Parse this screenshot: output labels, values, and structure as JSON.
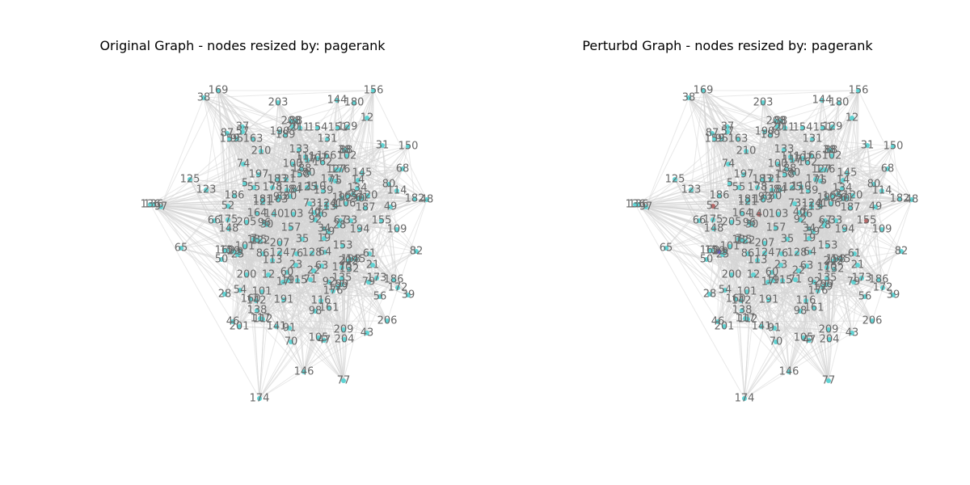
{
  "figure": {
    "panels": [
      {
        "title": "Original Graph - nodes resized by: pagerank",
        "node_color": "#5fd3d3",
        "edge_color": "#d6d6d6",
        "label_color": "#666666",
        "highlighted_nodes": []
      },
      {
        "title": "Perturbd Graph - nodes resized by: pagerank",
        "node_color": "#5fd3d3",
        "edge_color": "#d6d6d6",
        "label_color": "#666666",
        "highlighted_nodes": [
          {
            "label": "140",
            "color": "#b86a6a"
          },
          {
            "label": "155",
            "color": "#b86a6a"
          },
          {
            "label": "52",
            "color": "#b86a6a"
          },
          {
            "label": "94",
            "color": "#6a5acd"
          },
          {
            "label": "29",
            "color": "#6a5acd"
          }
        ]
      }
    ],
    "node_labels": [
      "169",
      "203",
      "38",
      "144",
      "180",
      "156",
      "208",
      "88",
      "12",
      "37",
      "57",
      "87",
      "159",
      "95",
      "163",
      "190",
      "189",
      "20",
      "211",
      "154",
      "151",
      "129",
      "131",
      "31",
      "150",
      "210",
      "133",
      "88",
      "38",
      "102",
      "117",
      "107",
      "166",
      "162",
      "74",
      "100",
      "111",
      "127",
      "176",
      "145",
      "68",
      "125",
      "197",
      "183",
      "121",
      "188",
      "158",
      "80",
      "171",
      "75",
      "14",
      "134",
      "120",
      "114",
      "80",
      "123",
      "5",
      "55",
      "178",
      "118",
      "84",
      "125",
      "110",
      "139",
      "136",
      "181",
      "90",
      "30",
      "182",
      "48",
      "136",
      "97",
      "52",
      "186",
      "121",
      "164",
      "163",
      "140",
      "73",
      "124",
      "192",
      "30",
      "113",
      "4",
      "165",
      "61",
      "2",
      "106",
      "103",
      "40",
      "92",
      "26",
      "67",
      "33",
      "187",
      "49",
      "66",
      "175",
      "205",
      "96",
      "148",
      "157",
      "30",
      "109",
      "155",
      "7",
      "122",
      "207",
      "185",
      "35",
      "19",
      "59",
      "194",
      "28",
      "160",
      "65",
      "15",
      "29",
      "9",
      "101",
      "34",
      "86",
      "124",
      "76",
      "128",
      "64",
      "153",
      "61",
      "82",
      "50",
      "25",
      "113",
      "23",
      "170",
      "63",
      "132",
      "21",
      "198",
      "145",
      "12",
      "200",
      "60",
      "22",
      "17",
      "19",
      "115",
      "71",
      "135",
      "202",
      "173",
      "186",
      "92",
      "199",
      "99",
      "79",
      "172",
      "39",
      "54",
      "101",
      "176",
      "56",
      "28",
      "160",
      "142",
      "191",
      "116",
      "161",
      "98",
      "138",
      "117",
      "112",
      "46",
      "201",
      "141",
      "91",
      "209",
      "206",
      "43",
      "70",
      "105",
      "47",
      "204",
      "146",
      "77",
      "174"
    ]
  }
}
